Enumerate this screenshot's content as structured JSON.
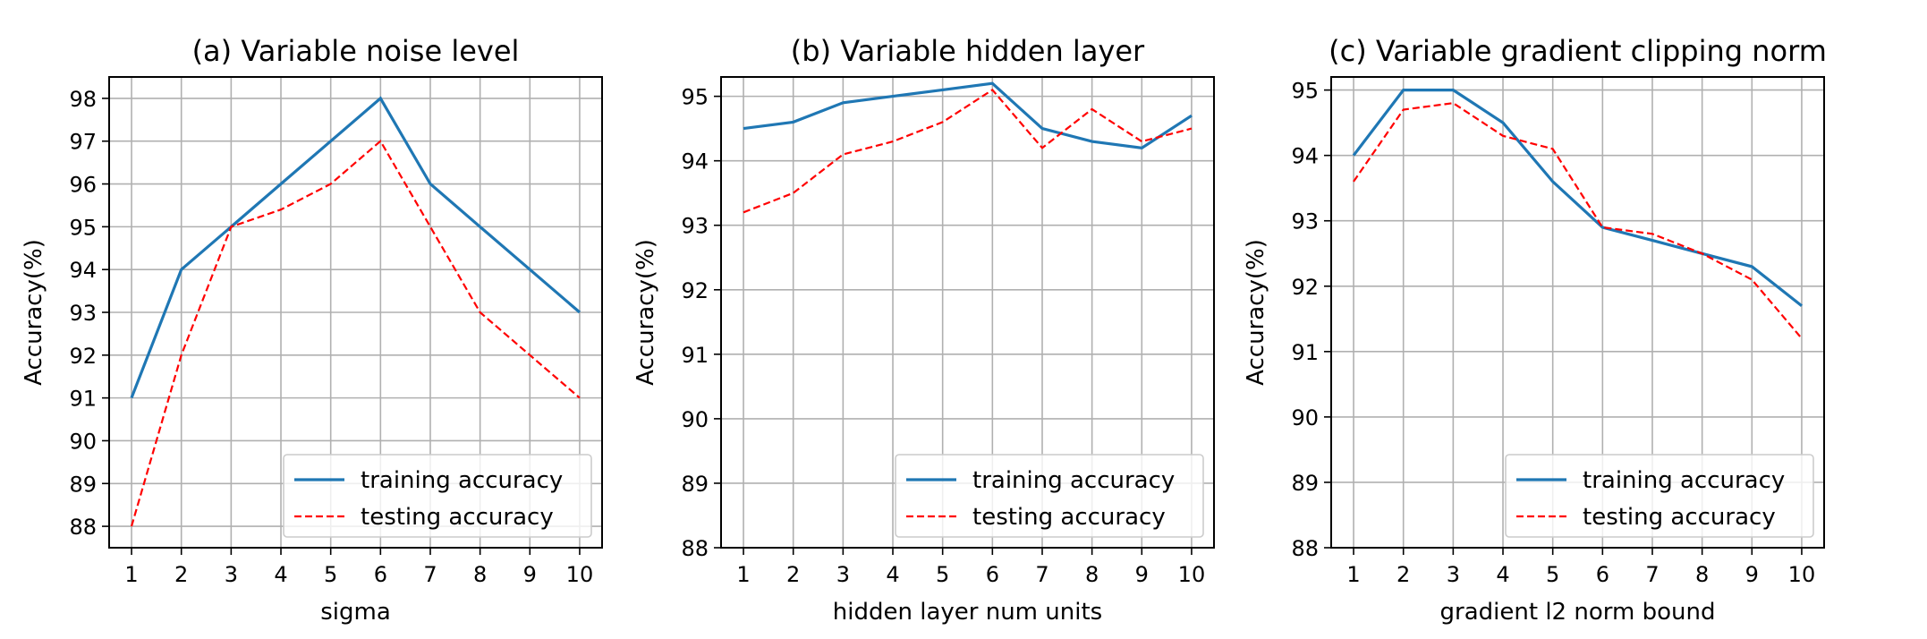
{
  "chart_data": [
    {
      "type": "line",
      "title": "(a) Variable noise level",
      "xlabel": "sigma",
      "ylabel": "Accuracy(%)",
      "x": [
        1,
        2,
        3,
        4,
        5,
        6,
        7,
        8,
        9,
        10
      ],
      "xlim": [
        0.55,
        10.45
      ],
      "ylim": [
        87.5,
        98.5
      ],
      "xticks": [
        "1",
        "2",
        "3",
        "4",
        "5",
        "6",
        "7",
        "8",
        "9",
        "10"
      ],
      "yticks": [
        "88",
        "89",
        "90",
        "91",
        "92",
        "93",
        "94",
        "95",
        "96",
        "97",
        "98"
      ],
      "grid": true,
      "legend": "lower-right",
      "series": [
        {
          "name": "training accuracy",
          "color": "#1f77b4",
          "style": "solid",
          "values": [
            91,
            94,
            95,
            96,
            97,
            98,
            96,
            95,
            94,
            93
          ]
        },
        {
          "name": "testing accuracy",
          "color": "#ff0000",
          "style": "dashed",
          "values": [
            88,
            92,
            95,
            95.4,
            96,
            97,
            95,
            93,
            92,
            91
          ]
        }
      ]
    },
    {
      "type": "line",
      "title": "(b) Variable hidden layer",
      "xlabel": "hidden layer num units",
      "ylabel": "Accuracy(%)",
      "x": [
        1,
        2,
        3,
        4,
        5,
        6,
        7,
        8,
        9,
        10
      ],
      "xlim": [
        0.55,
        10.45
      ],
      "ylim": [
        88,
        95.3
      ],
      "xticks": [
        "1",
        "2",
        "3",
        "4",
        "5",
        "6",
        "7",
        "8",
        "9",
        "10"
      ],
      "yticks": [
        "88",
        "89",
        "90",
        "91",
        "92",
        "93",
        "94",
        "95"
      ],
      "grid": true,
      "legend": "lower-right",
      "series": [
        {
          "name": "training accuracy",
          "color": "#1f77b4",
          "style": "solid",
          "values": [
            94.5,
            94.6,
            94.9,
            95.0,
            95.1,
            95.2,
            94.5,
            94.3,
            94.2,
            94.7
          ]
        },
        {
          "name": "testing accuracy",
          "color": "#ff0000",
          "style": "dashed",
          "values": [
            93.2,
            93.5,
            94.1,
            94.3,
            94.6,
            95.1,
            94.2,
            94.8,
            94.3,
            94.5
          ]
        }
      ]
    },
    {
      "type": "line",
      "title": "(c) Variable gradient clipping norm",
      "xlabel": "gradient l2 norm bound",
      "ylabel": "Accuracy(%)",
      "x": [
        1,
        2,
        3,
        4,
        5,
        6,
        7,
        8,
        9,
        10
      ],
      "xlim": [
        0.55,
        10.45
      ],
      "ylim": [
        88,
        95.2
      ],
      "xticks": [
        "1",
        "2",
        "3",
        "4",
        "5",
        "6",
        "7",
        "8",
        "9",
        "10"
      ],
      "yticks": [
        "88",
        "89",
        "90",
        "91",
        "92",
        "93",
        "94",
        "95"
      ],
      "grid": true,
      "legend": "lower-right",
      "series": [
        {
          "name": "training accuracy",
          "color": "#1f77b4",
          "style": "solid",
          "values": [
            94.0,
            95.0,
            95.0,
            94.5,
            93.6,
            92.9,
            92.7,
            92.5,
            92.3,
            91.7
          ]
        },
        {
          "name": "testing accuracy",
          "color": "#ff0000",
          "style": "dashed",
          "values": [
            93.6,
            94.7,
            94.8,
            94.3,
            94.1,
            92.9,
            92.8,
            92.5,
            92.1,
            91.2
          ]
        }
      ]
    }
  ]
}
